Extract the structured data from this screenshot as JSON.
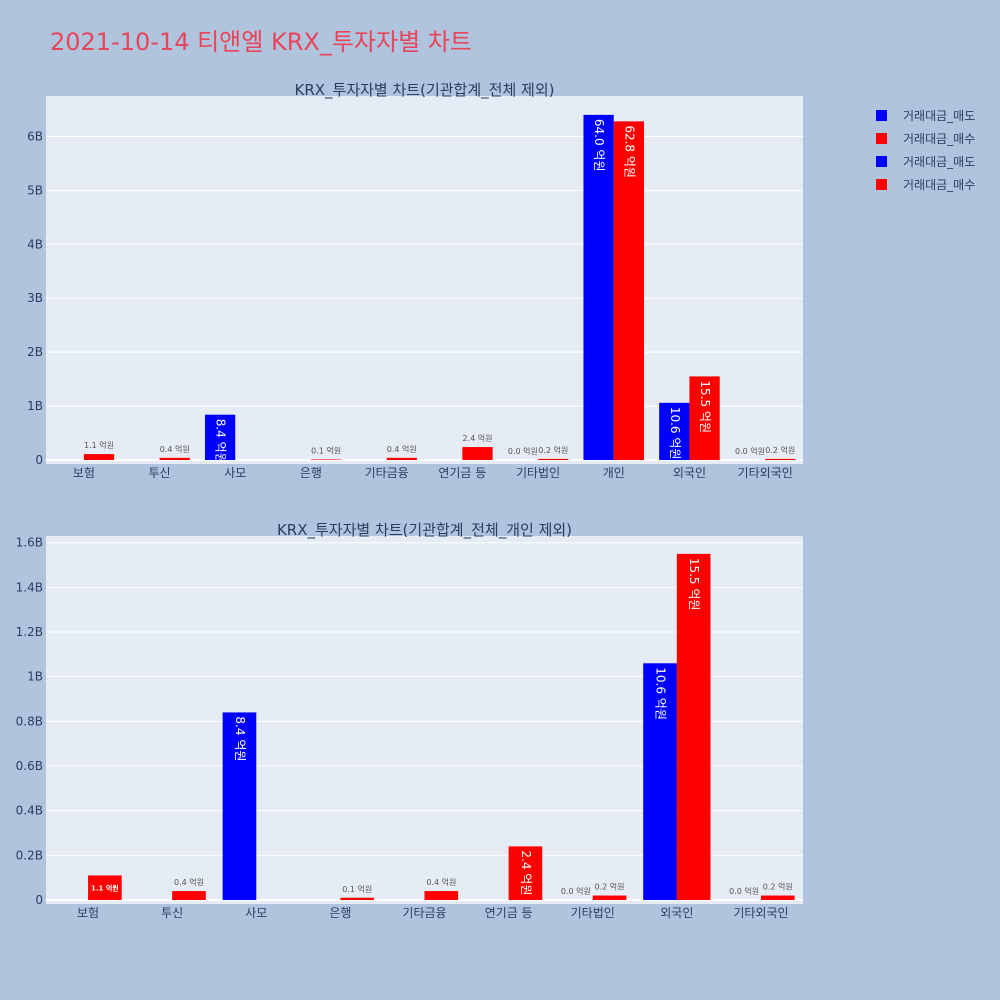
{
  "page": {
    "title": "2021-10-14 티앤엘 KRX_투자자별 차트",
    "title_color": "#e8455a",
    "background": "#b0c4de",
    "plot_background": "#e5ecf6"
  },
  "legend": {
    "items": [
      {
        "label": "거래대금_매도",
        "color": "#0000ff"
      },
      {
        "label": "거래대금_매수",
        "color": "#ff0000"
      },
      {
        "label": "거래대금_매도",
        "color": "#0000ff"
      },
      {
        "label": "거래대금_매수",
        "color": "#ff0000"
      }
    ]
  },
  "chart_data": [
    {
      "type": "bar",
      "title": "KRX_투자자별 차트(기관합계_전체 제외)",
      "categories": [
        "보험",
        "투신",
        "사모",
        "은행",
        "기타금융",
        "연기금 등",
        "기타법인",
        "개인",
        "외국인",
        "기타외국인"
      ],
      "yticks": [
        {
          "value": 0,
          "label": "0"
        },
        {
          "value": 1000000000,
          "label": "1B"
        },
        {
          "value": 2000000000,
          "label": "2B"
        },
        {
          "value": 3000000000,
          "label": "3B"
        },
        {
          "value": 4000000000,
          "label": "4B"
        },
        {
          "value": 5000000000,
          "label": "5B"
        },
        {
          "value": 6000000000,
          "label": "6B"
        }
      ],
      "ylim": [
        0,
        6750000000
      ],
      "series": [
        {
          "name": "거래대금_매도",
          "color": "#0000ff",
          "values": [
            0,
            0,
            840000000,
            0,
            0,
            0,
            0,
            6400000000,
            1060000000,
            0
          ],
          "labels": [
            "",
            "",
            "8.4 억원",
            "",
            "",
            "",
            "0.0 억원",
            "64.0 억원",
            "10.6 억원",
            "0.0 억원"
          ]
        },
        {
          "name": "거래대금_매수",
          "color": "#ff0000",
          "values": [
            110000000,
            40000000,
            0,
            10000000,
            40000000,
            240000000,
            20000000,
            6280000000,
            1550000000,
            20000000
          ],
          "labels": [
            "1.1 억원",
            "0.4 억원",
            "",
            "0.1 억원",
            "0.4 억원",
            "2.4 억원",
            "0.2 억원",
            "62.8 억원",
            "15.5 억원",
            "0.2 억원"
          ]
        }
      ]
    },
    {
      "type": "bar",
      "title": "KRX_투자자별 차트(기관합계_전체_개인 제외)",
      "categories": [
        "보험",
        "투신",
        "사모",
        "은행",
        "기타금융",
        "연기금 등",
        "기타법인",
        "외국인",
        "기타외국인"
      ],
      "yticks": [
        {
          "value": 0,
          "label": "0"
        },
        {
          "value": 200000000,
          "label": "0.2B"
        },
        {
          "value": 400000000,
          "label": "0.4B"
        },
        {
          "value": 600000000,
          "label": "0.6B"
        },
        {
          "value": 800000000,
          "label": "0.8B"
        },
        {
          "value": 1000000000,
          "label": "1B"
        },
        {
          "value": 1200000000,
          "label": "1.2B"
        },
        {
          "value": 1400000000,
          "label": "1.4B"
        },
        {
          "value": 1600000000,
          "label": "1.6B"
        }
      ],
      "ylim": [
        0,
        1630000000
      ],
      "series": [
        {
          "name": "거래대금_매도",
          "color": "#0000ff",
          "values": [
            0,
            0,
            840000000,
            0,
            0,
            0,
            0,
            1060000000,
            0
          ],
          "labels": [
            "",
            "",
            "8.4 억원",
            "",
            "",
            "",
            "0.0 억원",
            "10.6 억원",
            "0.0 억원"
          ]
        },
        {
          "name": "거래대금_매수",
          "color": "#ff0000",
          "values": [
            110000000,
            40000000,
            0,
            10000000,
            40000000,
            240000000,
            20000000,
            1550000000,
            20000000
          ],
          "labels": [
            "1.1 억원",
            "0.4 억원",
            "",
            "0.1 억원",
            "0.4 억원",
            "2.4 억원",
            "0.2 억원",
            "15.5 억원",
            "0.2 억원"
          ]
        }
      ]
    }
  ]
}
